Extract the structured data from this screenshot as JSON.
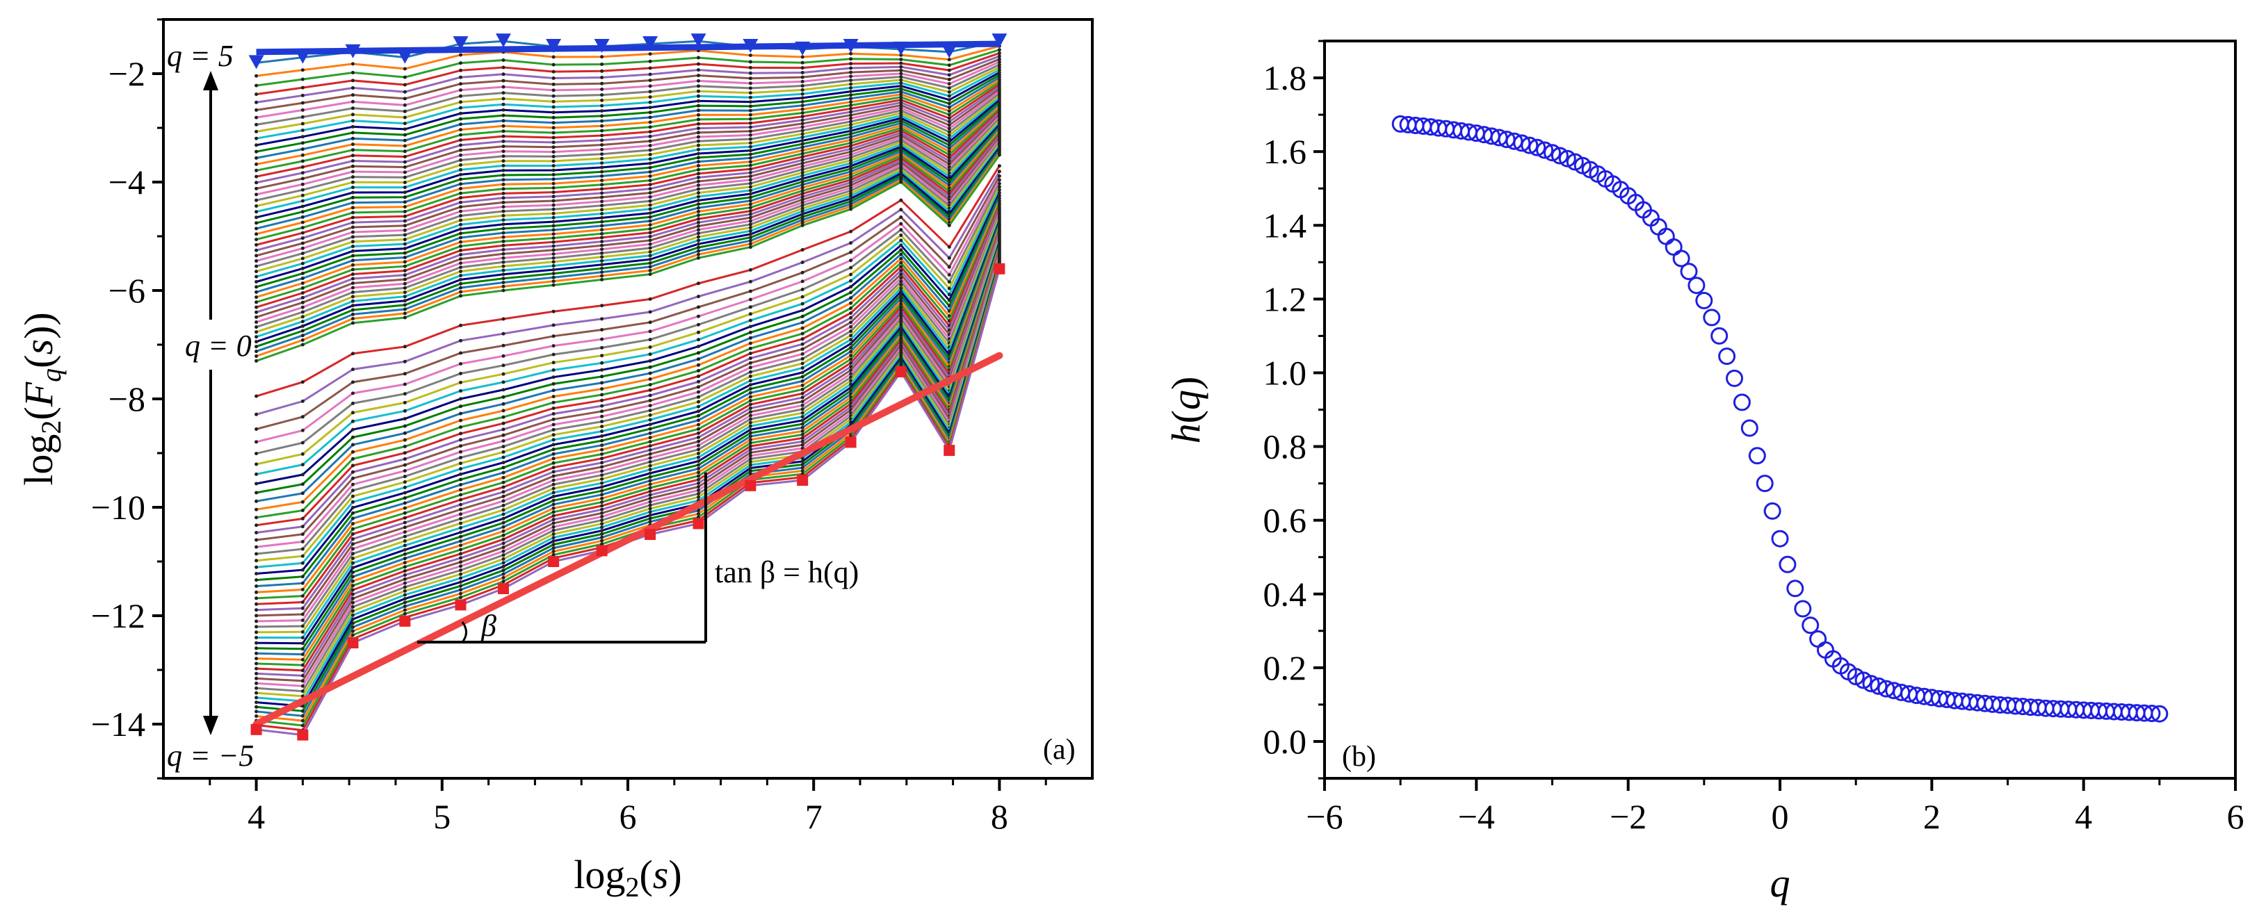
{
  "chart_data": [
    {
      "type": "line",
      "panel_label": "(a)",
      "xlabel": "log₂(s)",
      "ylabel": "log₂(F_q(s))",
      "xlim": [
        3.5,
        8.5
      ],
      "ylim": [
        -15,
        -1
      ],
      "x_ticks": [
        "4",
        "5",
        "6",
        "7",
        "8"
      ],
      "y_ticks": [
        "−2",
        "−4",
        "−6",
        "−8",
        "−10",
        "−12",
        "−14"
      ],
      "x": [
        4.0,
        4.25,
        4.52,
        4.8,
        5.1,
        5.33,
        5.6,
        5.86,
        6.12,
        6.38,
        6.66,
        6.94,
        7.2,
        7.47,
        7.73,
        8.0
      ],
      "series_count_note": "101 curves for q from −5 to 5",
      "series": [
        {
          "name": "q = 5",
          "values": [
            -1.8,
            -1.7,
            -1.6,
            -1.7,
            -1.45,
            -1.4,
            -1.5,
            -1.5,
            -1.45,
            -1.4,
            -1.5,
            -1.55,
            -1.5,
            -1.55,
            -1.6,
            -1.4
          ],
          "color": "#1f3bd6"
        },
        {
          "name": "q = 0",
          "values": [
            -7.3,
            -7.0,
            -6.6,
            -6.5,
            -6.1,
            -6.0,
            -5.9,
            -5.8,
            -5.7,
            -5.4,
            -5.2,
            -4.8,
            -4.5,
            -4.0,
            -4.8,
            -3.5
          ],
          "color": "#333333"
        },
        {
          "name": "q = −5",
          "values": [
            -14.1,
            -14.2,
            -12.5,
            -12.1,
            -11.8,
            -11.5,
            -11.0,
            -10.8,
            -10.5,
            -10.3,
            -9.6,
            -9.5,
            -8.8,
            -7.5,
            -8.95,
            -5.6
          ],
          "color": "#e8232a"
        }
      ],
      "fit_line": {
        "x": [
          4.0,
          8.0
        ],
        "y": [
          -14.0,
          -7.2
        ],
        "color": "#ef4444"
      },
      "top_line": {
        "x": [
          4.0,
          8.0
        ],
        "y": [
          -1.6,
          -1.45
        ],
        "color": "#1f3bd6"
      },
      "annotations": {
        "q_top": "q = 5",
        "q_mid": "q = 0",
        "q_bottom": "q = −5",
        "beta": "β",
        "slope_text": "tan β = h(q)"
      }
    },
    {
      "type": "scatter",
      "panel_label": "(b)",
      "xlabel": "q",
      "ylabel": "h(q)",
      "xlim": [
        -6,
        6
      ],
      "ylim": [
        -0.1,
        1.9
      ],
      "x_ticks": [
        "−6",
        "−4",
        "−2",
        "0",
        "2",
        "4",
        "6"
      ],
      "y_ticks": [
        "0.0",
        "0.2",
        "0.4",
        "0.6",
        "0.8",
        "1.0",
        "1.2",
        "1.4",
        "1.6",
        "1.8"
      ],
      "marker": "open-circle",
      "color": "#1f1fe0",
      "x": [
        -5.0,
        -4.9,
        -4.8,
        -4.7,
        -4.6,
        -4.5,
        -4.4,
        -4.3,
        -4.2,
        -4.1,
        -4.0,
        -3.9,
        -3.8,
        -3.7,
        -3.6,
        -3.5,
        -3.4,
        -3.3,
        -3.2,
        -3.1,
        -3.0,
        -2.9,
        -2.8,
        -2.7,
        -2.6,
        -2.5,
        -2.4,
        -2.3,
        -2.2,
        -2.1,
        -2.0,
        -1.9,
        -1.8,
        -1.7,
        -1.6,
        -1.5,
        -1.4,
        -1.3,
        -1.2,
        -1.1,
        -1.0,
        -0.9,
        -0.8,
        -0.7,
        -0.6,
        -0.5,
        -0.4,
        -0.3,
        -0.2,
        -0.1,
        0.0,
        0.1,
        0.2,
        0.3,
        0.4,
        0.5,
        0.6,
        0.7,
        0.8,
        0.9,
        1.0,
        1.1,
        1.2,
        1.3,
        1.4,
        1.5,
        1.6,
        1.7,
        1.8,
        1.9,
        2.0,
        2.1,
        2.2,
        2.3,
        2.4,
        2.5,
        2.6,
        2.7,
        2.8,
        2.9,
        3.0,
        3.1,
        3.2,
        3.3,
        3.4,
        3.5,
        3.6,
        3.7,
        3.8,
        3.9,
        4.0,
        4.1,
        4.2,
        4.3,
        4.4,
        4.5,
        4.6,
        4.7,
        4.8,
        4.9,
        5.0
      ],
      "y": [
        1.675,
        1.673,
        1.671,
        1.669,
        1.667,
        1.664,
        1.662,
        1.659,
        1.656,
        1.653,
        1.65,
        1.646,
        1.642,
        1.638,
        1.633,
        1.628,
        1.623,
        1.617,
        1.611,
        1.604,
        1.597,
        1.589,
        1.581,
        1.572,
        1.562,
        1.551,
        1.539,
        1.526,
        1.512,
        1.497,
        1.48,
        1.462,
        1.442,
        1.42,
        1.396,
        1.37,
        1.341,
        1.31,
        1.275,
        1.237,
        1.196,
        1.15,
        1.1,
        1.045,
        0.985,
        0.92,
        0.85,
        0.775,
        0.7,
        0.625,
        0.55,
        0.48,
        0.415,
        0.36,
        0.315,
        0.278,
        0.248,
        0.224,
        0.205,
        0.189,
        0.176,
        0.166,
        0.157,
        0.15,
        0.143,
        0.138,
        0.133,
        0.129,
        0.125,
        0.122,
        0.119,
        0.116,
        0.114,
        0.111,
        0.109,
        0.107,
        0.105,
        0.103,
        0.101,
        0.099,
        0.098,
        0.096,
        0.095,
        0.093,
        0.092,
        0.09,
        0.089,
        0.088,
        0.087,
        0.086,
        0.085,
        0.084,
        0.083,
        0.082,
        0.081,
        0.08,
        0.079,
        0.078,
        0.077,
        0.076,
        0.075
      ]
    }
  ]
}
